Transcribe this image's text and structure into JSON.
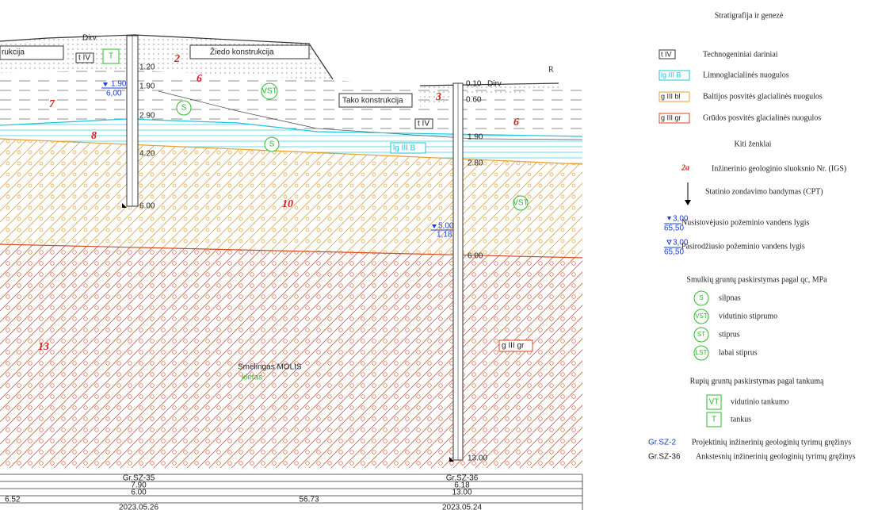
{
  "section": {
    "labels": [
      "rukcija",
      "Dirv",
      "t IV",
      "T",
      "1.20",
      "2",
      "Žiedo konstrukcija",
      "6",
      "1.90",
      "1.90",
      "6,00",
      "VST",
      "7",
      "S",
      "2.90",
      "8",
      "S",
      "4.20",
      "10",
      "6.00",
      "13",
      "Smėlingas MOLIS",
      "kietas",
      "R",
      "0.10",
      "Dirv",
      "0.60",
      "Tako konstrukcija",
      "3",
      "t IV",
      "6",
      "1.90",
      "lg III B",
      "2.80",
      "VST",
      "5,00",
      "1,18",
      "6.00",
      "g III gr",
      "13.00"
    ]
  },
  "table": {
    "rows": [
      [
        "Gr.SZ-35",
        "Gr.SZ-36"
      ],
      [
        "7.90",
        "6.18"
      ],
      [
        "6.00",
        "13.00"
      ],
      [
        "6.52",
        "56.73"
      ],
      [
        "2023.05.26",
        "2023.05.24"
      ]
    ]
  },
  "legend": {
    "title": "Stratigrafija ir genezė",
    "strata": [
      {
        "code": "t IV",
        "text": "Technogeniniai dariniai"
      },
      {
        "code": "lg III B",
        "text": "Limnoglacialinės nuogulos"
      },
      {
        "code": "g III bl",
        "text": "Baltijos posvitės glacialinės nuogulos"
      },
      {
        "code": "g III gr",
        "text": "Grūdos posvitės glacialinės nuogulos"
      }
    ],
    "other_title": "Kiti ženklai",
    "igs": {
      "code": "2a",
      "text": "Inžinerinio geologinio sluoksnio Nr. (IGS)"
    },
    "cpt": {
      "text": "Statinio zondavimo bandymas (CPT)"
    },
    "water_steady": {
      "level": "3,00",
      "alt": "65,50",
      "text": "Nusistovėjusio požeminio vandens lygis"
    },
    "water_appeared": {
      "level": "3,00",
      "alt": "65,50",
      "text": "Pasirodžiusio požeminio vandens lygis"
    },
    "fine_title": "Smulkių gruntų paskirstymas pagal qc, MPa",
    "fine": [
      {
        "code": "S",
        "text": "silpnas"
      },
      {
        "code": "VST",
        "text": "vidutinio stiprumo"
      },
      {
        "code": "ST",
        "text": "stiprus"
      },
      {
        "code": "LST",
        "text": "labai stiprus"
      }
    ],
    "coarse_title": "Rupių gruntų paskirstymas pagal tankumą",
    "coarse": [
      {
        "code": "VT",
        "text": "vidutinio tankumo"
      },
      {
        "code": "T",
        "text": "tankus"
      }
    ],
    "boreholes": [
      {
        "code": "Gr.SZ-2",
        "text": "Projektinių inžinerinių geologinių tyrimų gręžinys"
      },
      {
        "code": "Gr.SZ-36",
        "text": "Ankstesnių inžinerinių geologinių tyrimų gręžinys"
      }
    ]
  }
}
